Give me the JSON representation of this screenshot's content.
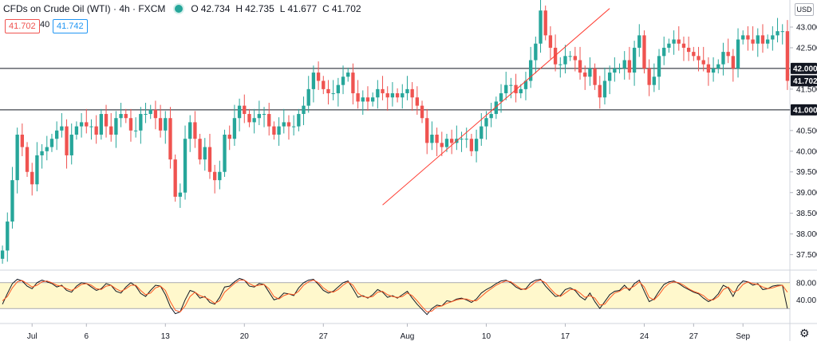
{
  "header": {
    "symbol": "CFDs on Crude Oil (WTI) · 4h · FXCM",
    "open_label": "O",
    "open": "42.734",
    "high_label": "H",
    "high": "42.735",
    "low_label": "L",
    "low": "41.677",
    "close_label": "C",
    "close": "41.702"
  },
  "quote": {
    "sell": "41.702",
    "spread": "40",
    "buy": "41.742"
  },
  "axis": {
    "currency": "USD"
  },
  "colors": {
    "up": "#26a69a",
    "down": "#ef5350",
    "stoch_k": "#131722",
    "stoch_d": "#ff5722",
    "trend": "#ff3b30",
    "band": "#fff8cc"
  },
  "chart_data": [
    {
      "type": "candlestick",
      "timeframe": "4h",
      "ylim": [
        37.3,
        43.5
      ],
      "y_ticks": [
        "37.500",
        "38.000",
        "38.500",
        "39.000",
        "39.500",
        "40.000",
        "40.500",
        "41.000",
        "41.500",
        "42.000",
        "42.500",
        "43.000"
      ],
      "x_ticks": [
        "Jul",
        "6",
        "13",
        "20",
        "27",
        "Aug",
        "10",
        "17",
        "24",
        "27",
        "Sep"
      ],
      "x_tick_index": [
        6,
        17,
        33,
        49,
        65,
        82,
        98,
        114,
        130,
        140,
        150
      ],
      "horizontal_lines": [
        42.0,
        41.0
      ],
      "price_labels": [
        {
          "value": 42.0,
          "text": "42.000",
          "style": "dark"
        },
        {
          "value": 41.702,
          "text": "41.702",
          "style": "dark"
        },
        {
          "value": 41.0,
          "text": "41.000",
          "style": "dark"
        }
      ],
      "trend_line": {
        "from_index": 77,
        "from_value": 38.7,
        "to_index": 123,
        "to_value": 43.45
      },
      "close": [
        37.6,
        38.3,
        39.3,
        40.4,
        40.1,
        39.5,
        39.2,
        39.9,
        40.0,
        40.1,
        40.3,
        40.5,
        40.6,
        39.9,
        40.4,
        40.6,
        40.7,
        40.6,
        40.6,
        40.4,
        40.9,
        40.6,
        40.4,
        40.8,
        40.9,
        40.8,
        40.5,
        40.5,
        40.9,
        40.9,
        41.0,
        40.8,
        40.5,
        40.8,
        39.8,
        38.9,
        39.0,
        40.3,
        40.7,
        40.3,
        39.8,
        40.1,
        39.5,
        39.3,
        39.5,
        40.4,
        40.3,
        40.8,
        41.1,
        40.9,
        40.7,
        40.8,
        40.9,
        40.9,
        40.6,
        40.4,
        40.6,
        40.7,
        40.6,
        40.6,
        40.9,
        41.1,
        41.5,
        41.9,
        41.7,
        41.5,
        41.4,
        41.4,
        41.6,
        41.8,
        41.9,
        41.4,
        41.2,
        41.3,
        41.2,
        41.3,
        41.5,
        41.4,
        41.3,
        41.4,
        41.3,
        41.4,
        41.5,
        41.3,
        41.1,
        40.8,
        40.2,
        40.4,
        40.2,
        40.1,
        40.3,
        40.2,
        40.3,
        40.3,
        40.3,
        40.0,
        40.3,
        40.6,
        40.8,
        40.9,
        41.2,
        41.4,
        41.6,
        41.6,
        41.4,
        41.5,
        41.7,
        42.2,
        42.6,
        43.4,
        42.8,
        42.5,
        42.1,
        42.1,
        42.3,
        42.3,
        42.2,
        41.9,
        41.8,
        42.0,
        41.6,
        41.3,
        41.7,
        41.9,
        42.0,
        42.0,
        42.2,
        41.9,
        42.5,
        42.8,
        42.0,
        41.6,
        41.8,
        42.3,
        42.5,
        42.6,
        42.7,
        42.6,
        42.5,
        42.4,
        42.3,
        42.2,
        42.1,
        41.9,
        42.0,
        42.1,
        42.4,
        42.3,
        42.0,
        42.7,
        42.8,
        42.7,
        42.6,
        42.8,
        42.6,
        42.7,
        42.8,
        42.9,
        42.9,
        41.7
      ],
      "panel": {
        "type": "line",
        "indicator": "stochastic",
        "ylim": [
          0,
          100
        ],
        "y_ticks": [
          "80.00",
          "40.00"
        ],
        "band": [
          20,
          80
        ],
        "series": [
          {
            "values": [
              30,
              55,
              78,
              88,
              84,
              72,
              66,
              80,
              86,
              82,
              78,
              70,
              74,
              62,
              58,
              72,
              80,
              78,
              70,
              62,
              66,
              78,
              74,
              60,
              56,
              70,
              80,
              72,
              55,
              48,
              62,
              74,
              72,
              52,
              24,
              8,
              12,
              40,
              62,
              58,
              44,
              48,
              34,
              30,
              46,
              70,
              72,
              82,
              90,
              86,
              72,
              70,
              78,
              76,
              58,
              40,
              44,
              56,
              54,
              50,
              68,
              80,
              86,
              88,
              76,
              62,
              56,
              60,
              70,
              80,
              84,
              66,
              46,
              50,
              44,
              52,
              64,
              58,
              46,
              50,
              44,
              52,
              60,
              44,
              30,
              18,
              6,
              20,
              28,
              26,
              38,
              36,
              42,
              44,
              40,
              34,
              42,
              56,
              64,
              70,
              78,
              84,
              86,
              80,
              70,
              64,
              66,
              80,
              86,
              88,
              72,
              60,
              48,
              50,
              64,
              68,
              62,
              48,
              40,
              56,
              36,
              20,
              36,
              52,
              60,
              62,
              74,
              62,
              78,
              86,
              60,
              36,
              42,
              60,
              76,
              82,
              84,
              78,
              70,
              64,
              58,
              54,
              44,
              36,
              42,
              54,
              74,
              68,
              48,
              72,
              84,
              82,
              74,
              78,
              64,
              66,
              72,
              74,
              74,
              20
            ]
          },
          {
            "values": [
              38,
              48,
              68,
              82,
              85,
              78,
              70,
              74,
              82,
              84,
              80,
              74,
              72,
              66,
              62,
              68,
              76,
              78,
              74,
              66,
              64,
              72,
              74,
              66,
              60,
              66,
              74,
              74,
              62,
              52,
              56,
              68,
              72,
              62,
              36,
              16,
              12,
              26,
              48,
              58,
              50,
              46,
              40,
              32,
              38,
              58,
              68,
              78,
              86,
              86,
              78,
              72,
              74,
              76,
              66,
              48,
              42,
              50,
              54,
              52,
              60,
              74,
              82,
              86,
              80,
              68,
              60,
              58,
              64,
              74,
              82,
              74,
              56,
              48,
              46,
              48,
              58,
              60,
              52,
              48,
              46,
              48,
              56,
              50,
              38,
              24,
              12,
              14,
              24,
              26,
              32,
              36,
              40,
              42,
              42,
              38,
              38,
              48,
              58,
              66,
              74,
              80,
              84,
              82,
              74,
              66,
              64,
              72,
              82,
              86,
              80,
              66,
              54,
              48,
              56,
              64,
              64,
              56,
              46,
              50,
              44,
              28,
              30,
              44,
              56,
              60,
              68,
              66,
              72,
              82,
              70,
              46,
              40,
              52,
              68,
              78,
              82,
              80,
              74,
              66,
              60,
              56,
              50,
              40,
              40,
              48,
              64,
              70,
              58,
              62,
              76,
              82,
              78,
              76,
              70,
              66,
              68,
              72,
              74,
              58
            ]
          }
        ]
      }
    }
  ]
}
